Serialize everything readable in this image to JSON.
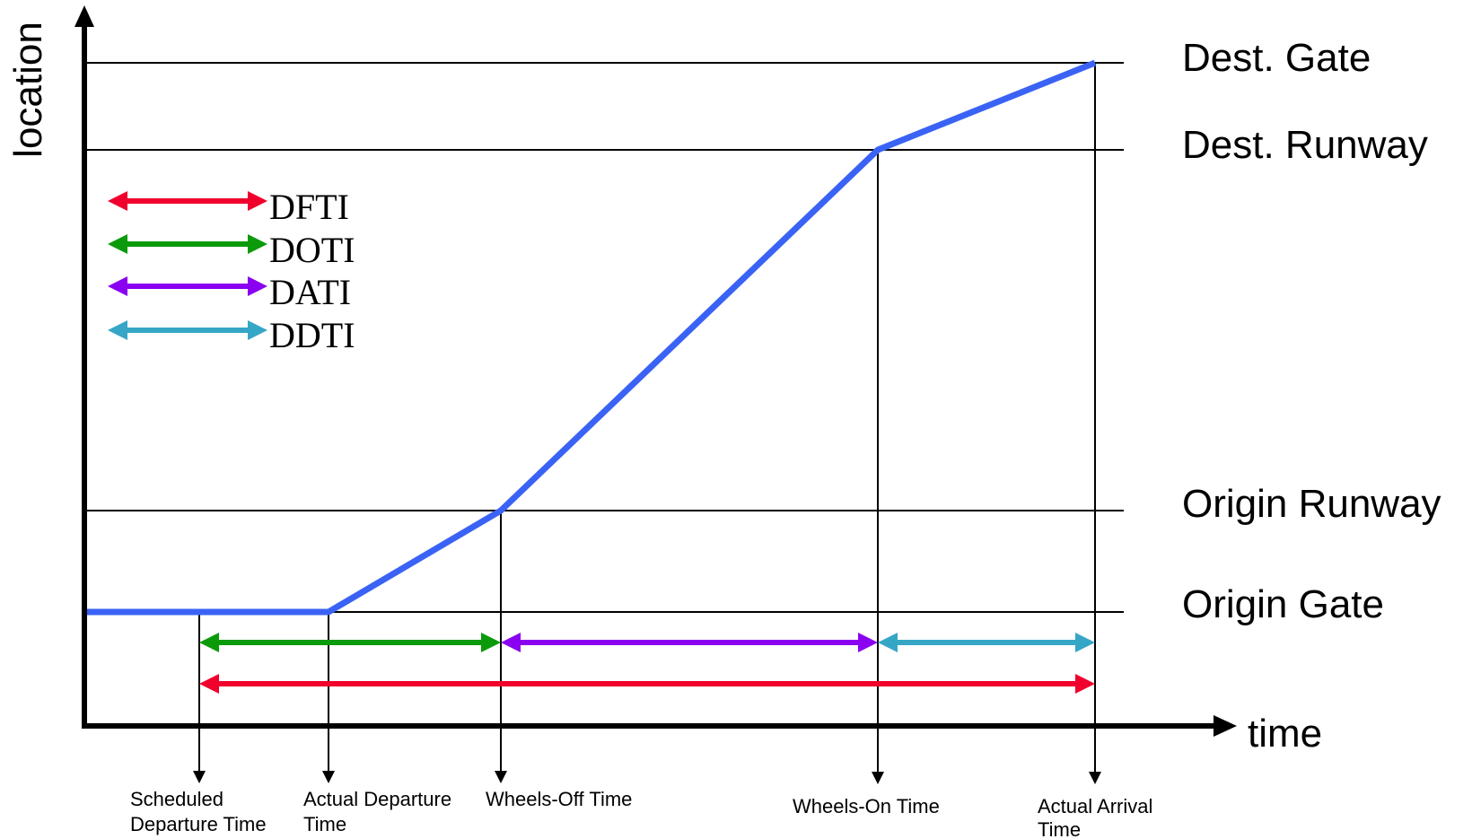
{
  "axes": {
    "y_label": "location",
    "x_label": "time"
  },
  "locations": [
    {
      "key": "dest_gate",
      "label": "Dest. Gate"
    },
    {
      "key": "dest_runway",
      "label": "Dest. Runway"
    },
    {
      "key": "origin_runway",
      "label": "Origin Runway"
    },
    {
      "key": "origin_gate",
      "label": "Origin Gate"
    }
  ],
  "times": [
    {
      "key": "scheduled_departure",
      "lines": [
        "Scheduled",
        "Departure Time"
      ]
    },
    {
      "key": "actual_departure",
      "lines": [
        "Actual Departure",
        "Time"
      ]
    },
    {
      "key": "wheels_off",
      "lines": [
        "Wheels-Off Time"
      ]
    },
    {
      "key": "wheels_on",
      "lines": [
        "Wheels-On Time"
      ]
    },
    {
      "key": "actual_arrival",
      "lines": [
        "Actual Arrival",
        "Time"
      ]
    }
  ],
  "legend": [
    {
      "key": "dfti",
      "label": "DFTI",
      "color": "#f0002c"
    },
    {
      "key": "doti",
      "label": "DOTI",
      "color": "#0a9a0a"
    },
    {
      "key": "dati",
      "label": "DATI",
      "color": "#8a00f0"
    },
    {
      "key": "ddti",
      "label": "DDTI",
      "color": "#36a6c6"
    }
  ],
  "intervals": [
    {
      "key": "doti",
      "from": "scheduled_departure",
      "to": "wheels_off"
    },
    {
      "key": "dati",
      "from": "wheels_off",
      "to": "wheels_on"
    },
    {
      "key": "ddti",
      "from": "wheels_on",
      "to": "actual_arrival"
    },
    {
      "key": "dfti",
      "from": "scheduled_departure",
      "to": "actual_arrival"
    }
  ],
  "trajectory_color": "#3a63f5"
}
